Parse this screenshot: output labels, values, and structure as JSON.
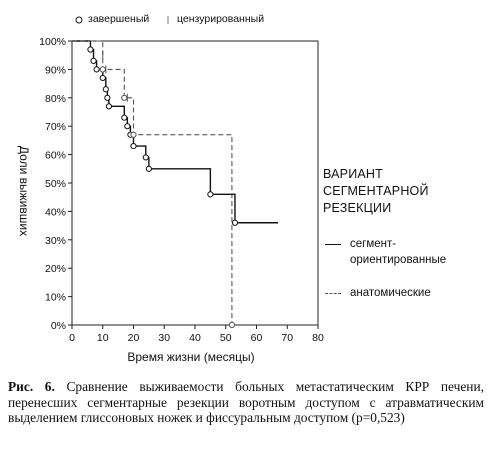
{
  "legend_top": {
    "completed_label": "завершеный",
    "censored_label": "цензурированный"
  },
  "legend_right": {
    "title": "ВАРИАНТ СЕГМЕНТАРНОЙ РЕЗЕКЦИИ",
    "series_1_label": "сегмент-ориентированные",
    "series_2_label": "анатомические"
  },
  "caption": {
    "label": "Рис. 6.",
    "text": "Сравнение выживаемости больных метастатическим КРР печени, перенесших сегментарные резекции воротным доступом с атравматическим выделением глиссоновых ножек и фиссуральным доступом (p=0,523)"
  },
  "chart_data": {
    "type": "line",
    "step": true,
    "xlabel": "Время жизни (месяцы)",
    "ylabel": "Доли выживших",
    "xlim": [
      0,
      80
    ],
    "ylim": [
      0,
      1
    ],
    "x_ticks": [
      0,
      10,
      20,
      30,
      40,
      50,
      60,
      70,
      80
    ],
    "y_ticks": [
      0,
      0.1,
      0.2,
      0.3,
      0.4,
      0.5,
      0.6,
      0.7,
      0.8,
      0.9,
      1.0
    ],
    "y_tick_labels": [
      "0%",
      "10%",
      "20%",
      "30%",
      "40%",
      "50%",
      "60%",
      "70%",
      "80%",
      "90%",
      "100%"
    ],
    "grid": false,
    "series": [
      {
        "name": "сегмент-ориентированные",
        "style": "solid",
        "color": "#111111",
        "steps": [
          [
            0,
            1.0
          ],
          [
            6,
            0.97
          ],
          [
            7,
            0.93
          ],
          [
            8,
            0.9
          ],
          [
            10,
            0.87
          ],
          [
            11,
            0.83
          ],
          [
            11.5,
            0.8
          ],
          [
            12,
            0.77
          ],
          [
            17,
            0.73
          ],
          [
            18,
            0.7
          ],
          [
            19,
            0.67
          ],
          [
            20,
            0.63
          ],
          [
            24,
            0.59
          ],
          [
            25,
            0.55
          ],
          [
            45,
            0.46
          ],
          [
            53,
            0.36
          ]
        ],
        "end_x": 67,
        "completed": [
          [
            6,
            0.97
          ],
          [
            7,
            0.93
          ],
          [
            8,
            0.9
          ],
          [
            10,
            0.87
          ],
          [
            11,
            0.83
          ],
          [
            11.5,
            0.8
          ],
          [
            12,
            0.77
          ],
          [
            17,
            0.73
          ],
          [
            18,
            0.7
          ],
          [
            19,
            0.67
          ],
          [
            20,
            0.63
          ],
          [
            24,
            0.59
          ],
          [
            25,
            0.55
          ],
          [
            45,
            0.46
          ],
          [
            53,
            0.36
          ]
        ],
        "censored": []
      },
      {
        "name": "анатомические",
        "style": "dashed",
        "color": "#555555",
        "steps": [
          [
            0,
            1.0
          ],
          [
            10,
            0.9
          ],
          [
            17,
            0.8
          ],
          [
            20,
            0.67
          ],
          [
            52,
            0.0
          ]
        ],
        "end_x": 52,
        "completed": [
          [
            10,
            0.9
          ],
          [
            17,
            0.8
          ],
          [
            20,
            0.67
          ],
          [
            52,
            0.0
          ]
        ],
        "censored": [
          [
            10,
            0.95
          ],
          [
            11,
            0.9
          ],
          [
            18,
            0.8
          ]
        ]
      }
    ]
  }
}
